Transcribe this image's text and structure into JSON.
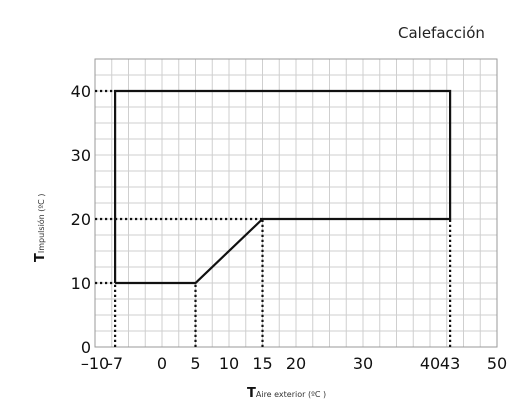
{
  "chart_data": {
    "type": "line",
    "title": "Calefacción",
    "xlabel": {
      "main": "T",
      "sub": "Aire exterior (ºC )"
    },
    "ylabel": {
      "main": "T",
      "sub": "Impulsión (ºC )"
    },
    "xlim": [
      -10,
      50
    ],
    "ylim": [
      0,
      45
    ],
    "grid": true,
    "x_ticks": [
      {
        "value": -10,
        "label": "–10"
      },
      {
        "value": -7,
        "label": "-7"
      },
      {
        "value": 0,
        "label": "0"
      },
      {
        "value": 5,
        "label": "5"
      },
      {
        "value": 10,
        "label": "10"
      },
      {
        "value": 15,
        "label": "15"
      },
      {
        "value": 20,
        "label": "20"
      },
      {
        "value": 30,
        "label": "30"
      },
      {
        "value": 40,
        "label": "40"
      },
      {
        "value": 43,
        "label": "43"
      },
      {
        "value": 50,
        "label": "50"
      }
    ],
    "y_ticks": [
      {
        "value": 0,
        "label": "0"
      },
      {
        "value": 10,
        "label": "10"
      },
      {
        "value": 20,
        "label": "20"
      },
      {
        "value": 30,
        "label": "30"
      },
      {
        "value": 40,
        "label": "40"
      }
    ],
    "series": [
      {
        "x": [
          -7,
          -7,
          43,
          43,
          15,
          5,
          -7
        ],
        "y": [
          10,
          40,
          40,
          20,
          20,
          10,
          10
        ]
      }
    ],
    "reference_lines": [
      {
        "orientation": "vertical",
        "x": -7,
        "y": [
          0,
          10
        ]
      },
      {
        "orientation": "vertical",
        "x": 5,
        "y": [
          0,
          10
        ]
      },
      {
        "orientation": "vertical",
        "x": 15,
        "y": [
          0,
          20
        ]
      },
      {
        "orientation": "vertical",
        "x": 43,
        "y": [
          0,
          20
        ]
      },
      {
        "orientation": "horizontal",
        "y": 20,
        "x": [
          -10,
          15
        ]
      },
      {
        "orientation": "horizontal",
        "y": 40,
        "x": [
          -10,
          -7
        ]
      },
      {
        "orientation": "horizontal",
        "y": 10,
        "x": [
          -10,
          -7
        ]
      }
    ]
  }
}
